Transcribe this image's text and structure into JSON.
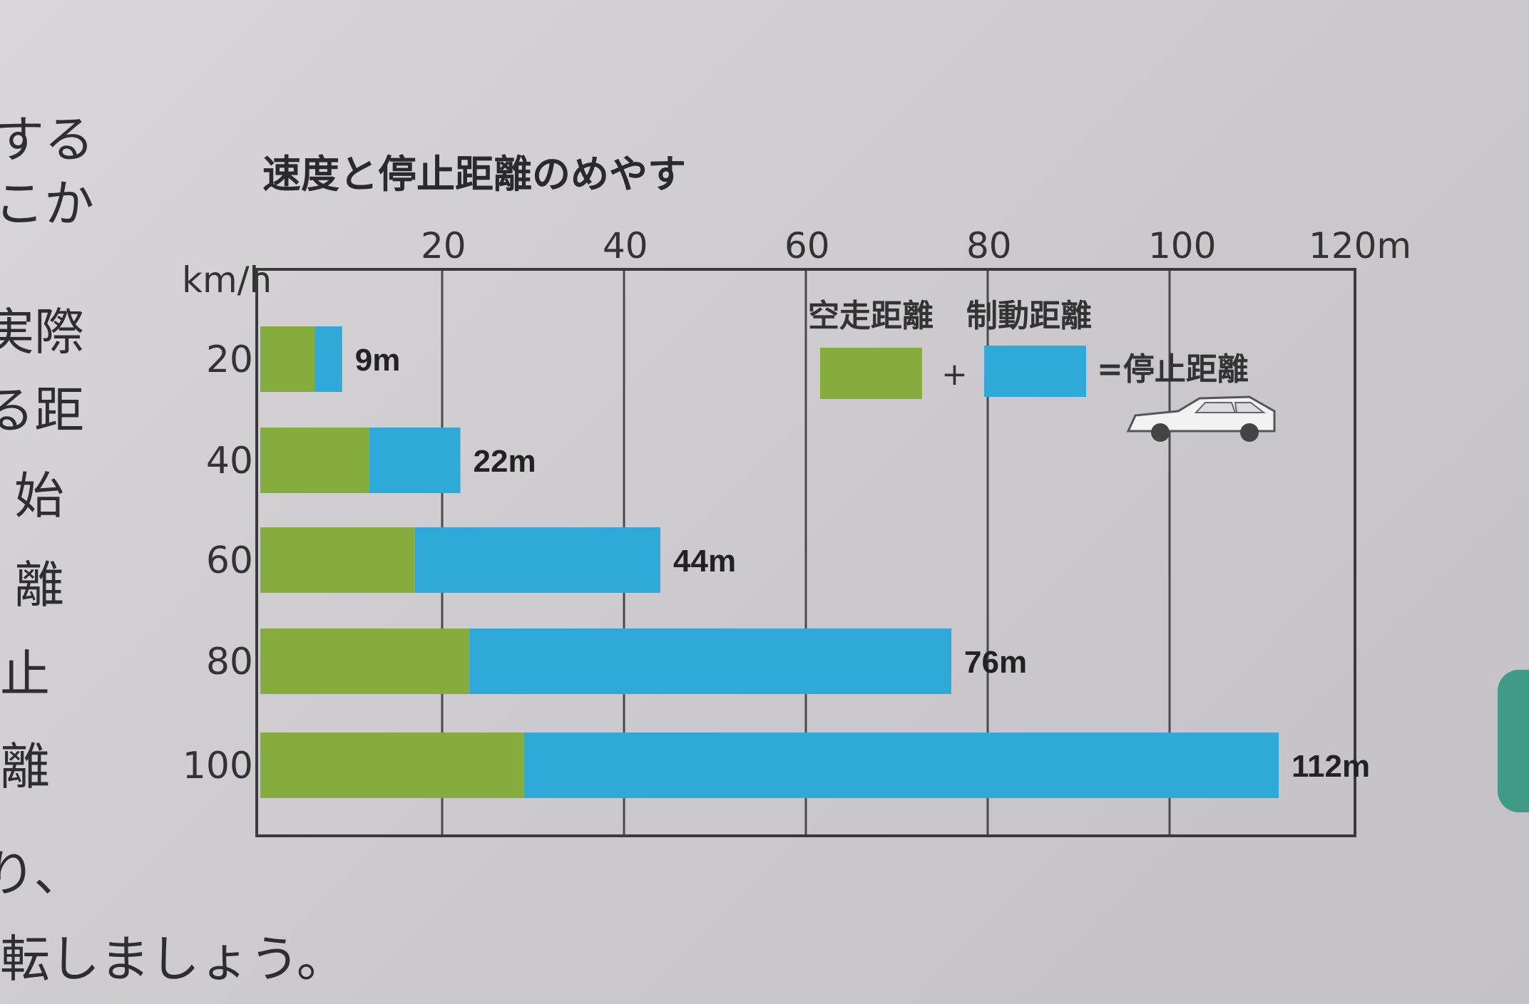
{
  "title": "速度と停止距離のめやす",
  "side_text": [
    "する",
    "こか",
    "実際",
    "る距",
    "始",
    "離",
    "止",
    "離",
    "り、"
  ],
  "footer_text": "転しましょう。",
  "colors": {
    "free_running": "#86ac3e",
    "braking": "#2ea9d8"
  },
  "chart_data": {
    "type": "bar",
    "stacked": true,
    "orientation": "horizontal",
    "title": "速度と停止距離のめやす",
    "ylabel": "km/h",
    "xaxis_ticks": [
      "20",
      "40",
      "60",
      "80",
      "100",
      "120m"
    ],
    "xlim": [
      0,
      120
    ],
    "categories": [
      "20",
      "40",
      "60",
      "80",
      "100"
    ],
    "series": [
      {
        "name": "空走距離",
        "values": [
          6,
          12,
          17,
          23,
          29
        ]
      },
      {
        "name": "制動距離",
        "values": [
          3,
          10,
          27,
          53,
          83
        ]
      }
    ],
    "totals_labels": [
      "9m",
      "22m",
      "44m",
      "76m",
      "112m"
    ],
    "totals": [
      9,
      22,
      44,
      76,
      112
    ],
    "legend": {
      "position": "top-right",
      "plus": "+",
      "result": "=停止距離",
      "icon": "car-icon"
    },
    "grid": true
  }
}
